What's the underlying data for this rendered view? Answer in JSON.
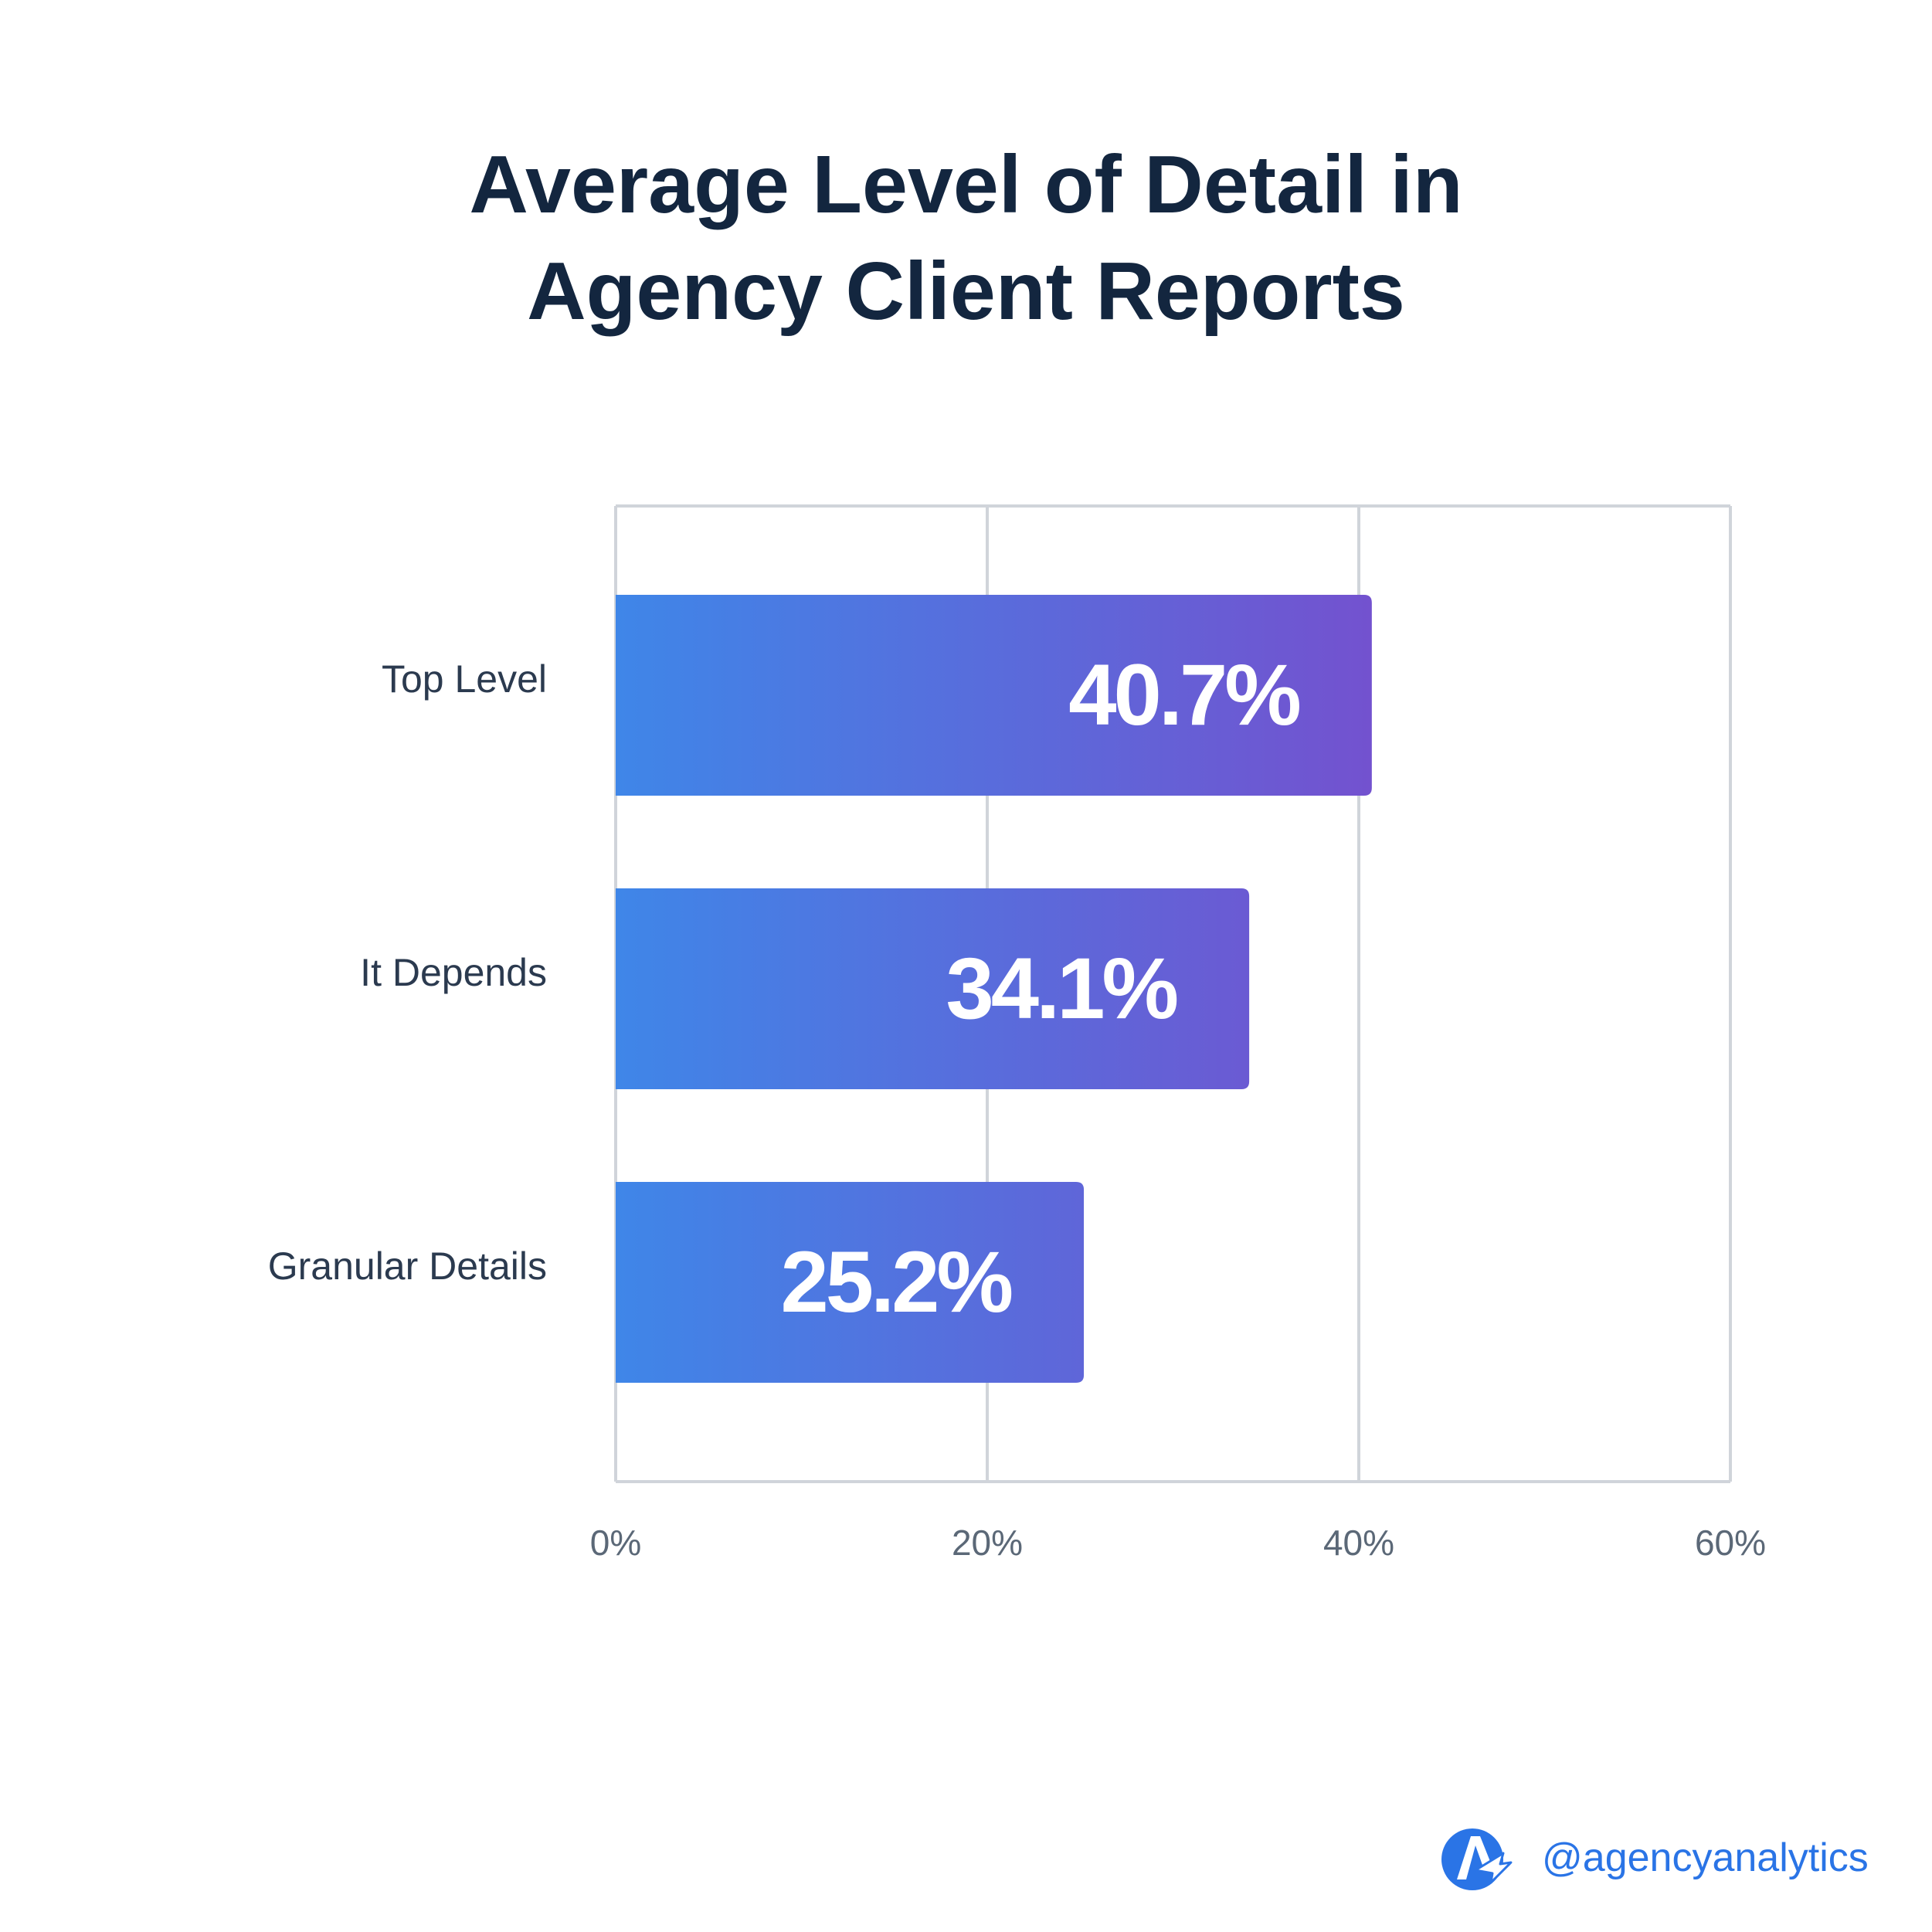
{
  "colors": {
    "title": "#13263f",
    "category_label": "#2b3a4f",
    "tick_label": "#5b6877",
    "grid": "#d0d4da",
    "bar_start": "#3f86e8",
    "bar_end": "#7352cf",
    "bar_value_text": "#ffffff",
    "brand": "#2a74e6"
  },
  "chart_data": {
    "type": "bar",
    "orientation": "horizontal",
    "title_lines": [
      "Average Level of Detail in",
      "Agency Client Reports"
    ],
    "categories": [
      "Top Level",
      "It Depends",
      "Granular Details"
    ],
    "values": [
      40.7,
      34.1,
      25.2
    ],
    "value_labels": [
      "40.7%",
      "34.1%",
      "25.2%"
    ],
    "xlim": [
      0,
      60
    ],
    "xticks": [
      0,
      20,
      40,
      60
    ],
    "xtick_labels": [
      "0%",
      "20%",
      "40%",
      "60%"
    ],
    "grid": true,
    "xlabel": "",
    "ylabel": ""
  },
  "footer": {
    "handle": "@agencyanalytics",
    "logo_icon": "agencyanalytics-logo-icon"
  }
}
